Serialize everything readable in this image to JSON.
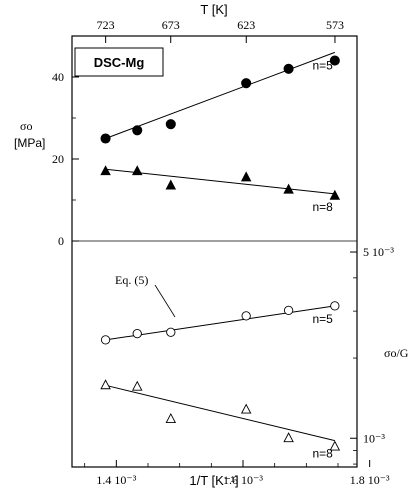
{
  "chart_data": {
    "type": "scatter",
    "panel_label": "DSC-Mg",
    "top_axis": {
      "label": "T [K]",
      "ticks": [
        "723",
        "673",
        "623",
        "573"
      ]
    },
    "bottom_axis": {
      "label": "1/T [K⁻¹]",
      "ticks": [
        "1.4 10⁻³",
        "1.6 10⁻³",
        "1.8 10⁻³"
      ],
      "tick_values": [
        0.0014,
        0.0016,
        0.0018
      ],
      "range": [
        0.00133,
        0.00178
      ]
    },
    "upper_panel": {
      "ylabel_line1": "σo",
      "ylabel_line2": "[MPa]",
      "ylim": [
        0,
        50
      ],
      "ticks": [
        "0",
        "20",
        "40"
      ],
      "tick_values": [
        0,
        20,
        40
      ],
      "series": [
        {
          "marker": "filled-circle",
          "annotation": "n=5",
          "x": [
            0.001383,
            0.001433,
            0.001486,
            0.001605,
            0.001672,
            0.001745
          ],
          "y": [
            25,
            27,
            28.5,
            38.5,
            42,
            44
          ],
          "fit": [
            [
              0.001383,
              25
            ],
            [
              0.001745,
              46
            ]
          ]
        },
        {
          "marker": "filled-triangle",
          "annotation": "n=8",
          "x": [
            0.001383,
            0.001433,
            0.001486,
            0.001605,
            0.001672,
            0.001745
          ],
          "y": [
            17,
            17,
            13.5,
            15.5,
            12.5,
            11
          ],
          "fit": [
            [
              0.001383,
              17.5
            ],
            [
              0.001745,
              11.5
            ]
          ]
        }
      ]
    },
    "lower_panel": {
      "ylabel": "σo/G",
      "yscale": "log",
      "ylim": [
        0.00078,
        0.0055
      ],
      "ticks": [
        "5 10⁻³",
        "10⁻³"
      ],
      "tick_values": [
        0.005,
        0.001
      ],
      "minor_tick_values": [
        0.002,
        0.003,
        0.004,
        0.0009,
        0.0008
      ],
      "equation_label": "Eq. (5)",
      "series": [
        {
          "marker": "open-circle",
          "annotation": "n=5",
          "x": [
            0.001383,
            0.001433,
            0.001486,
            0.001605,
            0.001672,
            0.001745
          ],
          "y": [
            0.00234,
            0.00247,
            0.0025,
            0.00288,
            0.00302,
            0.00314
          ],
          "fit": [
            [
              0.001383,
              0.00234
            ],
            [
              0.001745,
              0.00314
            ]
          ]
        },
        {
          "marker": "open-triangle",
          "annotation": "n=8",
          "x": [
            0.001383,
            0.001433,
            0.001486,
            0.001605,
            0.001672,
            0.001745
          ],
          "y": [
            0.00158,
            0.00156,
            0.00118,
            0.00128,
            0.001,
            0.00093
          ],
          "fit": [
            [
              0.001383,
              0.00158
            ],
            [
              0.001745,
              0.00098
            ]
          ]
        }
      ]
    }
  }
}
